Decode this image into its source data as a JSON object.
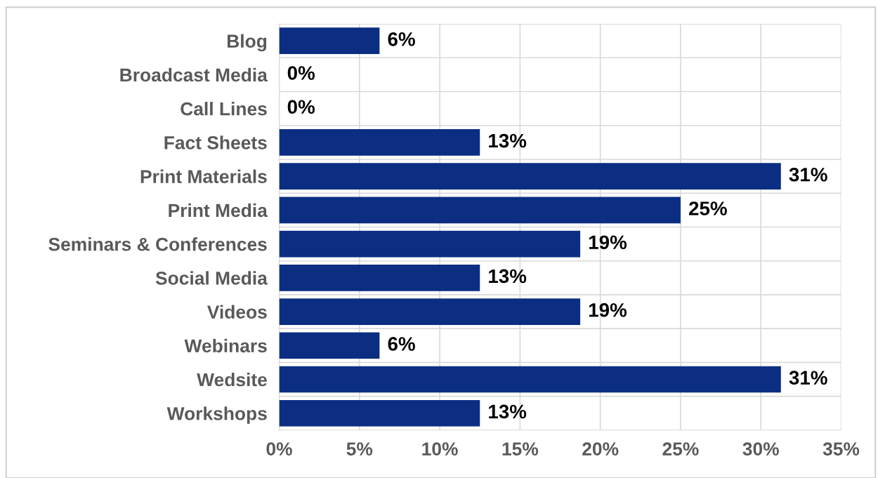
{
  "chart_data": {
    "type": "bar",
    "orientation": "horizontal",
    "categories": [
      "Blog",
      "Broadcast Media",
      "Call Lines",
      "Fact Sheets",
      "Print Materials",
      "Print Media",
      "Seminars & Conferences",
      "Social Media",
      "Videos",
      "Webinars",
      "Wedsite",
      "Workshops"
    ],
    "values": [
      6.25,
      0,
      0,
      12.5,
      31.25,
      25,
      18.75,
      12.5,
      18.75,
      6.25,
      31.25,
      12.5
    ],
    "value_labels": [
      "6%",
      "0%",
      "0%",
      "13%",
      "31%",
      "25%",
      "19%",
      "13%",
      "19%",
      "6%",
      "31%",
      "13%"
    ],
    "color": "#0b2e82",
    "xlim": [
      0,
      35
    ],
    "xticks": [
      {
        "value": 0,
        "label": "0%"
      },
      {
        "value": 5,
        "label": "5%"
      },
      {
        "value": 10,
        "label": "10%"
      },
      {
        "value": 15,
        "label": "15%"
      },
      {
        "value": 20,
        "label": "20%"
      },
      {
        "value": 25,
        "label": "25%"
      },
      {
        "value": 30,
        "label": "30%"
      },
      {
        "value": 35,
        "label": "35%"
      }
    ],
    "grid": true
  }
}
